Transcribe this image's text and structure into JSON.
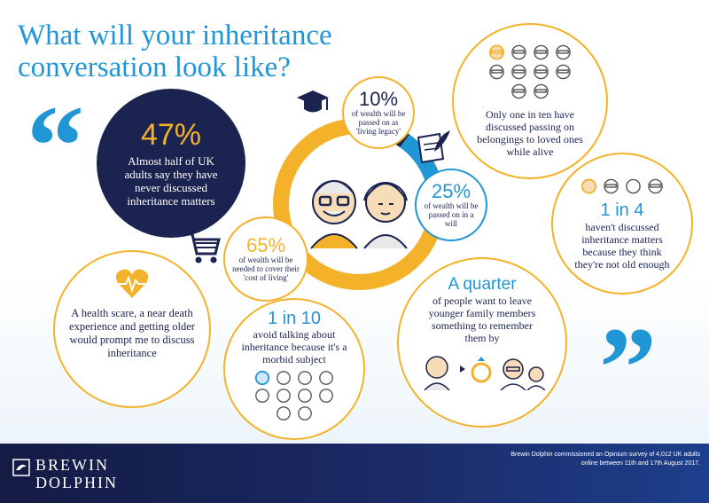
{
  "title": "What will your inheritance conversation look like?",
  "stat_47": {
    "value": "47%",
    "text": "Almost half of UK adults say they have never discussed inheritance matters"
  },
  "center_ring": {
    "segments": [
      {
        "label": "living legacy",
        "percent": 10,
        "color": "#1b2350"
      },
      {
        "label": "will",
        "percent": 25,
        "color": "#2196d6"
      },
      {
        "label": "cost of living",
        "percent": 65,
        "color": "#f3b22a"
      }
    ]
  },
  "stat_10": {
    "value": "10%",
    "text": "of wealth will be passed on as 'living legacy'"
  },
  "stat_25": {
    "value": "25%",
    "text": "of wealth will be passed on in a will"
  },
  "stat_65": {
    "value": "65%",
    "text": "of wealth will be needed to cover their 'cost of living'"
  },
  "one_in_ten_alive": {
    "text": "Only one in ten have discussed passing on belongings to loved ones while alive"
  },
  "one_in_four": {
    "value": "1 in 4",
    "text": "haven't discussed inheritance matters because they think they're not old enough"
  },
  "quarter": {
    "value": "A quarter",
    "text": "of people want to leave younger family members something to remember them by"
  },
  "one_in_ten_morbid": {
    "value": "1 in 10",
    "text": "avoid talking about inheritance because it's a morbid subject"
  },
  "health_scare": {
    "text": "A health scare, a near death experience and getting older would prompt me to discuss inheritance"
  },
  "quotes": {
    "open": "“",
    "close": "”"
  },
  "footer": {
    "logo_line1": "BREWIN",
    "logo_line2": "DOLPHIN",
    "note": "Brewin Dolphin commissioned an Opinium survey of 4,012 UK adults online between 11th and 17th August 2017."
  },
  "colors": {
    "navy": "#1b2350",
    "blue": "#2196d6",
    "orange": "#f3b22a"
  },
  "icons": [
    "graduation-cap-icon",
    "quill-paper-icon",
    "shopping-cart-icon",
    "heart-pulse-icon",
    "ring-box-icon"
  ]
}
